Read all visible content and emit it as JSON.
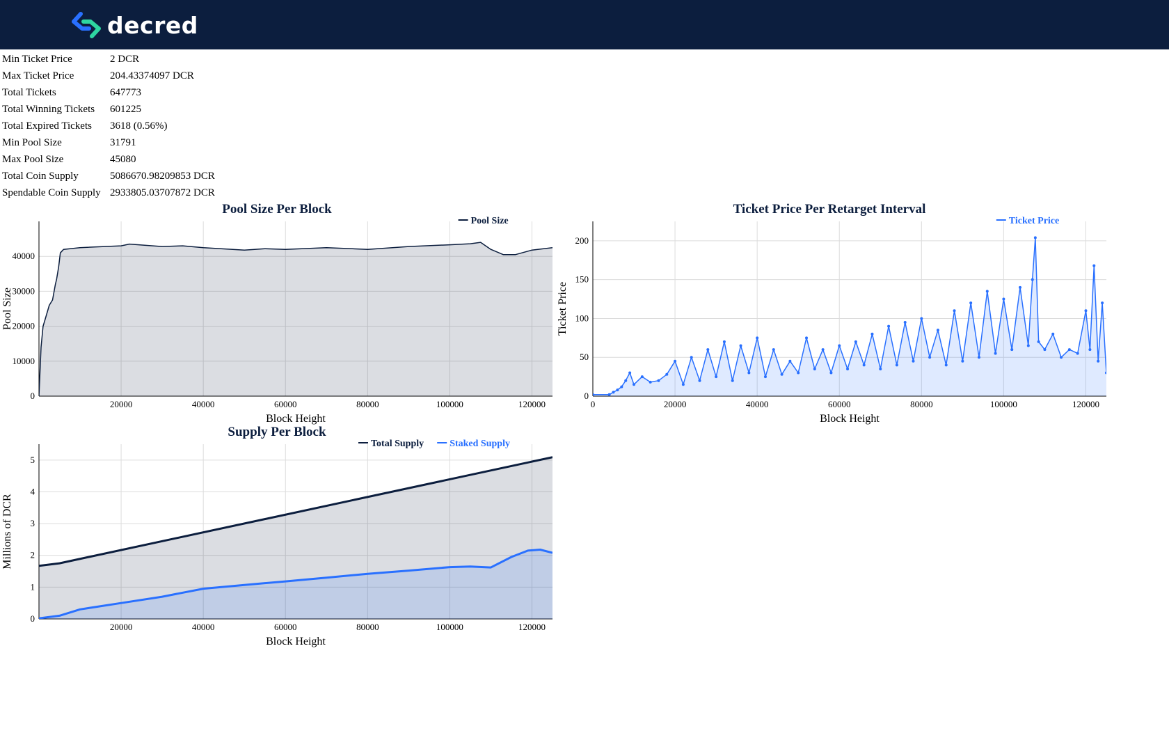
{
  "colors": {
    "header_bg": "#0c1e3e",
    "navy": "#0c1e3e",
    "blue": "#2970ff",
    "logo_blue": "#2970ff",
    "logo_green": "#2ed6a1"
  },
  "header": {
    "logo_icon": "decred-logo-icon",
    "logo_text": "decred"
  },
  "stats": [
    {
      "label": "Min Ticket Price",
      "value": "2 DCR"
    },
    {
      "label": "Max Ticket Price",
      "value": "204.43374097 DCR"
    },
    {
      "label": "Total Tickets",
      "value": "647773"
    },
    {
      "label": "Total Winning Tickets",
      "value": "601225"
    },
    {
      "label": "Total Expired Tickets",
      "value": "3618 (0.56%)"
    },
    {
      "label": "Min Pool Size",
      "value": "31791"
    },
    {
      "label": "Max Pool Size",
      "value": "45080"
    },
    {
      "label": "Total Coin Supply",
      "value": "5086670.98209853 DCR"
    },
    {
      "label": "Spendable Coin Supply",
      "value": "2933805.03707872 DCR"
    }
  ],
  "chart_data": [
    {
      "type": "area",
      "title": "Pool Size Per Block",
      "xlabel": "Block Height",
      "ylabel": "Pool Size",
      "xlim": [
        0,
        125000
      ],
      "ylim": [
        0,
        50000
      ],
      "xticks": [
        20000,
        40000,
        60000,
        80000,
        100000,
        120000
      ],
      "yticks": [
        0,
        10000,
        20000,
        30000,
        40000
      ],
      "grid": true,
      "legend_position": "top-right",
      "series": [
        {
          "name": "Pool Size",
          "color": "#0c1e3e",
          "x": [
            0,
            500,
            1000,
            1500,
            2500,
            3300,
            4000,
            4300,
            4800,
            5200,
            6000,
            10000,
            20000,
            22000,
            30000,
            35000,
            40000,
            50000,
            55000,
            60000,
            70000,
            80000,
            90000,
            100000,
            105000,
            107500,
            110000,
            113000,
            116000,
            120000,
            125000
          ],
          "y": [
            0,
            14000,
            20000,
            22000,
            26000,
            27500,
            32000,
            33500,
            37000,
            41000,
            42000,
            42500,
            43000,
            43500,
            42800,
            43000,
            42500,
            41800,
            42200,
            42000,
            42500,
            42000,
            42800,
            43300,
            43600,
            44000,
            42000,
            40500,
            40500,
            41800,
            42500
          ]
        }
      ]
    },
    {
      "type": "line",
      "title": "Ticket Price Per Retarget Interval",
      "xlabel": "Block Height",
      "ylabel": "Ticket Price",
      "xlim": [
        0,
        125000
      ],
      "ylim": [
        0,
        225
      ],
      "xticks": [
        0,
        20000,
        40000,
        60000,
        80000,
        100000,
        120000
      ],
      "yticks": [
        0,
        50,
        100,
        150,
        200
      ],
      "grid": true,
      "legend_position": "top-right",
      "series": [
        {
          "name": "Ticket Price",
          "color": "#2970ff",
          "x": [
            0,
            4000,
            5000,
            6000,
            7000,
            8000,
            9000,
            10000,
            12000,
            14000,
            16000,
            18000,
            20000,
            22000,
            24000,
            26000,
            28000,
            30000,
            32000,
            34000,
            36000,
            38000,
            40000,
            42000,
            44000,
            46000,
            48000,
            50000,
            52000,
            54000,
            56000,
            58000,
            60000,
            62000,
            64000,
            66000,
            68000,
            70000,
            72000,
            74000,
            76000,
            78000,
            80000,
            82000,
            84000,
            86000,
            88000,
            90000,
            92000,
            94000,
            96000,
            98000,
            100000,
            102000,
            104000,
            106000,
            107000,
            107700,
            108500,
            110000,
            112000,
            114000,
            116000,
            118000,
            120000,
            121000,
            122000,
            123000,
            124000,
            125000
          ],
          "y": [
            2,
            2,
            5,
            8,
            12,
            20,
            30,
            15,
            25,
            18,
            20,
            28,
            45,
            15,
            50,
            20,
            60,
            25,
            70,
            20,
            65,
            30,
            75,
            25,
            60,
            28,
            45,
            30,
            75,
            35,
            60,
            30,
            65,
            35,
            70,
            40,
            80,
            35,
            90,
            40,
            95,
            45,
            100,
            50,
            85,
            40,
            110,
            45,
            120,
            50,
            135,
            55,
            125,
            60,
            140,
            65,
            150,
            204,
            70,
            60,
            80,
            50,
            60,
            55,
            110,
            60,
            168,
            45,
            120,
            30
          ]
        }
      ]
    },
    {
      "type": "area",
      "title": "Supply Per Block",
      "xlabel": "Block Height",
      "ylabel": "Millions of DCR",
      "xlim": [
        0,
        125000
      ],
      "ylim": [
        0,
        5.5
      ],
      "xticks": [
        20000,
        40000,
        60000,
        80000,
        100000,
        120000
      ],
      "yticks": [
        0,
        1,
        2,
        3,
        4,
        5
      ],
      "grid": true,
      "legend_position": "top-right",
      "series": [
        {
          "name": "Total Supply",
          "color": "#0c1e3e",
          "x": [
            0,
            5000,
            125000
          ],
          "y": [
            1.67,
            1.75,
            5.09
          ]
        },
        {
          "name": "Staked Supply",
          "color": "#2970ff",
          "x": [
            0,
            5000,
            10000,
            20000,
            30000,
            40000,
            50000,
            60000,
            70000,
            80000,
            90000,
            100000,
            105000,
            110000,
            115000,
            119000,
            122000,
            125000
          ],
          "y": [
            0.02,
            0.1,
            0.3,
            0.5,
            0.7,
            0.95,
            1.07,
            1.18,
            1.3,
            1.42,
            1.52,
            1.63,
            1.65,
            1.62,
            1.95,
            2.15,
            2.18,
            2.08
          ]
        }
      ]
    }
  ]
}
